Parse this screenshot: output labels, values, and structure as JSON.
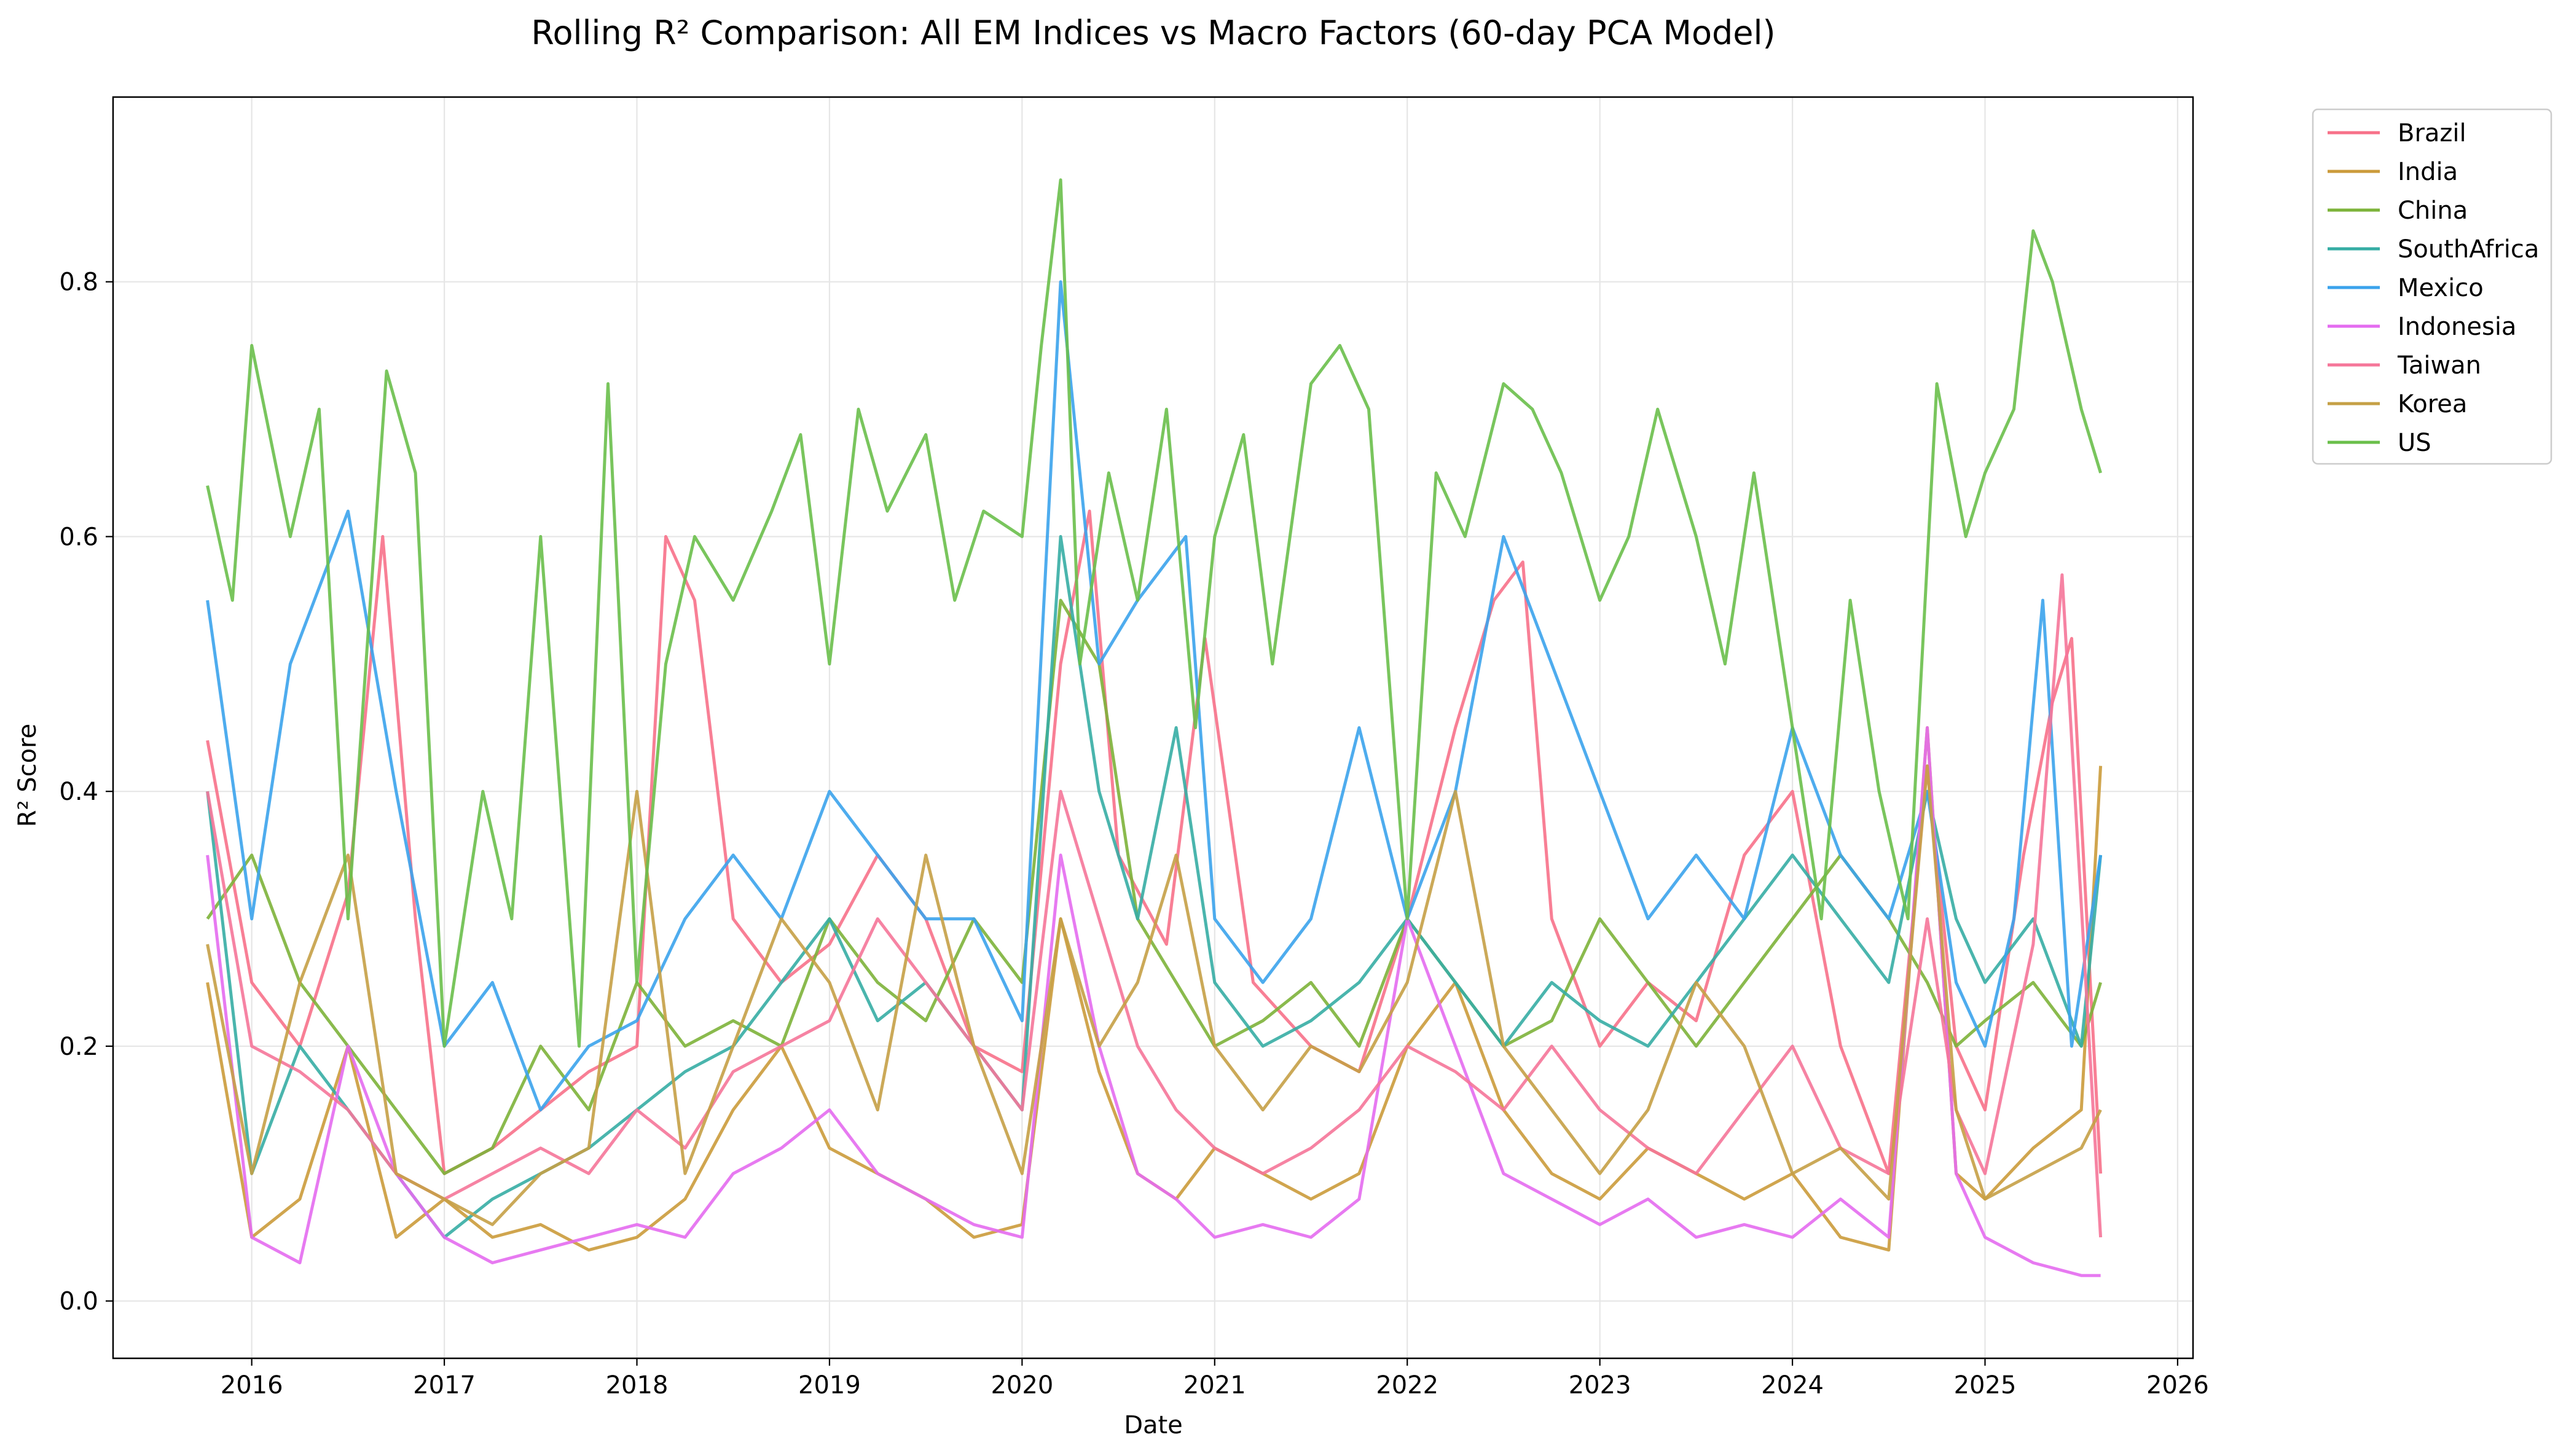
{
  "chart_data": {
    "type": "line",
    "title": "Rolling R² Comparison: All EM Indices vs Macro Factors (60-day PCA Model)",
    "xlabel": "Date",
    "ylabel": "R² Score",
    "xlim": [
      2015.28,
      2026.08
    ],
    "ylim": [
      -0.045,
      0.945
    ],
    "x_ticks": [
      2016,
      2017,
      2018,
      2019,
      2020,
      2021,
      2022,
      2023,
      2024,
      2025,
      2026
    ],
    "x_tick_labels": [
      "2016",
      "2017",
      "2018",
      "2019",
      "2020",
      "2021",
      "2022",
      "2023",
      "2024",
      "2025",
      "2026"
    ],
    "y_ticks": [
      0.0,
      0.2,
      0.4,
      0.6,
      0.8
    ],
    "y_tick_labels": [
      "0.0",
      "0.2",
      "0.4",
      "0.6",
      "0.8"
    ],
    "grid": true,
    "legend_position": "outside-upper-right",
    "series": [
      {
        "name": "Brazil",
        "color": "#f77189",
        "x": [
          2015.77,
          2016.0,
          2016.25,
          2016.5,
          2016.68,
          2016.85,
          2017.0,
          2017.25,
          2017.5,
          2017.75,
          2018.0,
          2018.15,
          2018.3,
          2018.5,
          2018.75,
          2019.0,
          2019.25,
          2019.5,
          2019.75,
          2020.0,
          2020.2,
          2020.35,
          2020.5,
          2020.75,
          2020.95,
          2021.2,
          2021.5,
          2021.75,
          2022.0,
          2022.25,
          2022.45,
          2022.6,
          2022.75,
          2023.0,
          2023.25,
          2023.5,
          2023.75,
          2024.0,
          2024.25,
          2024.5,
          2024.7,
          2024.85,
          2025.0,
          2025.2,
          2025.35,
          2025.45,
          2025.6
        ],
        "y": [
          0.44,
          0.25,
          0.2,
          0.32,
          0.6,
          0.3,
          0.1,
          0.12,
          0.15,
          0.18,
          0.2,
          0.6,
          0.55,
          0.3,
          0.25,
          0.28,
          0.35,
          0.3,
          0.2,
          0.18,
          0.5,
          0.62,
          0.35,
          0.28,
          0.52,
          0.25,
          0.2,
          0.18,
          0.3,
          0.45,
          0.55,
          0.58,
          0.3,
          0.2,
          0.25,
          0.22,
          0.35,
          0.4,
          0.2,
          0.1,
          0.42,
          0.2,
          0.15,
          0.35,
          0.47,
          0.52,
          0.1
        ]
      },
      {
        "name": "India",
        "color": "#cb9b3b",
        "x": [
          2015.77,
          2016.0,
          2016.25,
          2016.5,
          2016.75,
          2017.0,
          2017.25,
          2017.5,
          2017.75,
          2018.0,
          2018.25,
          2018.5,
          2018.75,
          2019.0,
          2019.25,
          2019.5,
          2019.75,
          2020.0,
          2020.2,
          2020.4,
          2020.6,
          2020.8,
          2021.0,
          2021.25,
          2021.5,
          2021.75,
          2022.0,
          2022.25,
          2022.5,
          2022.75,
          2023.0,
          2023.25,
          2023.5,
          2023.75,
          2024.0,
          2024.25,
          2024.5,
          2024.7,
          2024.85,
          2025.0,
          2025.25,
          2025.5,
          2025.6
        ],
        "y": [
          0.25,
          0.05,
          0.08,
          0.2,
          0.05,
          0.08,
          0.05,
          0.06,
          0.04,
          0.05,
          0.08,
          0.15,
          0.2,
          0.12,
          0.1,
          0.08,
          0.05,
          0.06,
          0.3,
          0.18,
          0.1,
          0.08,
          0.12,
          0.1,
          0.08,
          0.1,
          0.2,
          0.25,
          0.15,
          0.1,
          0.08,
          0.12,
          0.1,
          0.08,
          0.1,
          0.05,
          0.04,
          0.45,
          0.1,
          0.08,
          0.12,
          0.15,
          0.42
        ]
      },
      {
        "name": "China",
        "color": "#7db33a",
        "x": [
          2015.77,
          2016.0,
          2016.25,
          2016.5,
          2016.75,
          2017.0,
          2017.25,
          2017.5,
          2017.75,
          2018.0,
          2018.25,
          2018.5,
          2018.75,
          2019.0,
          2019.25,
          2019.5,
          2019.75,
          2020.0,
          2020.2,
          2020.4,
          2020.6,
          2020.8,
          2021.0,
          2021.25,
          2021.5,
          2021.75,
          2022.0,
          2022.25,
          2022.5,
          2022.75,
          2023.0,
          2023.25,
          2023.5,
          2023.75,
          2024.0,
          2024.25,
          2024.5,
          2024.7,
          2024.85,
          2025.0,
          2025.25,
          2025.5,
          2025.6
        ],
        "y": [
          0.3,
          0.35,
          0.25,
          0.2,
          0.15,
          0.1,
          0.12,
          0.2,
          0.15,
          0.25,
          0.2,
          0.22,
          0.2,
          0.3,
          0.25,
          0.22,
          0.3,
          0.25,
          0.55,
          0.5,
          0.3,
          0.25,
          0.2,
          0.22,
          0.25,
          0.2,
          0.3,
          0.25,
          0.2,
          0.22,
          0.3,
          0.25,
          0.2,
          0.25,
          0.3,
          0.35,
          0.3,
          0.25,
          0.2,
          0.22,
          0.25,
          0.2,
          0.25
        ]
      },
      {
        "name": "SouthAfrica",
        "color": "#36ada4",
        "x": [
          2015.77,
          2016.0,
          2016.25,
          2016.5,
          2016.75,
          2017.0,
          2017.25,
          2017.5,
          2017.75,
          2018.0,
          2018.25,
          2018.5,
          2018.75,
          2019.0,
          2019.25,
          2019.5,
          2019.75,
          2020.0,
          2020.2,
          2020.4,
          2020.6,
          2020.8,
          2021.0,
          2021.25,
          2021.5,
          2021.75,
          2022.0,
          2022.25,
          2022.5,
          2022.75,
          2023.0,
          2023.25,
          2023.5,
          2023.75,
          2024.0,
          2024.25,
          2024.5,
          2024.7,
          2024.85,
          2025.0,
          2025.25,
          2025.5,
          2025.6
        ],
        "y": [
          0.4,
          0.1,
          0.2,
          0.15,
          0.1,
          0.05,
          0.08,
          0.1,
          0.12,
          0.15,
          0.18,
          0.2,
          0.25,
          0.3,
          0.22,
          0.25,
          0.2,
          0.15,
          0.6,
          0.4,
          0.3,
          0.45,
          0.25,
          0.2,
          0.22,
          0.25,
          0.3,
          0.25,
          0.2,
          0.25,
          0.22,
          0.2,
          0.25,
          0.3,
          0.35,
          0.3,
          0.25,
          0.4,
          0.3,
          0.25,
          0.3,
          0.2,
          0.35
        ]
      },
      {
        "name": "Mexico",
        "color": "#3ba3ec",
        "x": [
          2015.77,
          2016.0,
          2016.2,
          2016.5,
          2016.75,
          2017.0,
          2017.25,
          2017.5,
          2017.75,
          2018.0,
          2018.25,
          2018.5,
          2018.75,
          2019.0,
          2019.25,
          2019.5,
          2019.75,
          2020.0,
          2020.2,
          2020.4,
          2020.6,
          2020.85,
          2021.0,
          2021.25,
          2021.5,
          2021.75,
          2022.0,
          2022.25,
          2022.5,
          2022.75,
          2023.0,
          2023.25,
          2023.5,
          2023.75,
          2024.0,
          2024.25,
          2024.5,
          2024.7,
          2024.85,
          2025.0,
          2025.15,
          2025.3,
          2025.45,
          2025.6
        ],
        "y": [
          0.55,
          0.3,
          0.5,
          0.62,
          0.4,
          0.2,
          0.25,
          0.15,
          0.2,
          0.22,
          0.3,
          0.35,
          0.3,
          0.4,
          0.35,
          0.3,
          0.3,
          0.22,
          0.8,
          0.5,
          0.55,
          0.6,
          0.3,
          0.25,
          0.3,
          0.45,
          0.3,
          0.4,
          0.6,
          0.5,
          0.4,
          0.3,
          0.35,
          0.3,
          0.45,
          0.35,
          0.3,
          0.4,
          0.25,
          0.2,
          0.3,
          0.55,
          0.2,
          0.35
        ]
      },
      {
        "name": "Indonesia",
        "color": "#e46cf0",
        "x": [
          2015.77,
          2016.0,
          2016.25,
          2016.5,
          2016.75,
          2017.0,
          2017.25,
          2017.5,
          2017.75,
          2018.0,
          2018.25,
          2018.5,
          2018.75,
          2019.0,
          2019.25,
          2019.5,
          2019.75,
          2020.0,
          2020.2,
          2020.4,
          2020.6,
          2020.8,
          2021.0,
          2021.25,
          2021.5,
          2021.75,
          2022.0,
          2022.25,
          2022.5,
          2022.75,
          2023.0,
          2023.25,
          2023.5,
          2023.75,
          2024.0,
          2024.25,
          2024.5,
          2024.7,
          2024.85,
          2025.0,
          2025.25,
          2025.5,
          2025.6
        ],
        "y": [
          0.35,
          0.05,
          0.03,
          0.2,
          0.1,
          0.05,
          0.03,
          0.04,
          0.05,
          0.06,
          0.05,
          0.1,
          0.12,
          0.15,
          0.1,
          0.08,
          0.06,
          0.05,
          0.35,
          0.2,
          0.1,
          0.08,
          0.05,
          0.06,
          0.05,
          0.08,
          0.3,
          0.2,
          0.1,
          0.08,
          0.06,
          0.08,
          0.05,
          0.06,
          0.05,
          0.08,
          0.05,
          0.45,
          0.1,
          0.05,
          0.03,
          0.02,
          0.02
        ]
      },
      {
        "name": "Taiwan",
        "color": "#f57699",
        "x": [
          2015.77,
          2016.0,
          2016.25,
          2016.5,
          2016.75,
          2017.0,
          2017.25,
          2017.5,
          2017.75,
          2018.0,
          2018.25,
          2018.5,
          2018.75,
          2019.0,
          2019.25,
          2019.5,
          2019.75,
          2020.0,
          2020.2,
          2020.4,
          2020.6,
          2020.8,
          2021.0,
          2021.25,
          2021.5,
          2021.75,
          2022.0,
          2022.25,
          2022.5,
          2022.75,
          2023.0,
          2023.25,
          2023.5,
          2023.75,
          2024.0,
          2024.25,
          2024.5,
          2024.7,
          2024.85,
          2025.0,
          2025.25,
          2025.4,
          2025.6
        ],
        "y": [
          0.4,
          0.2,
          0.18,
          0.15,
          0.1,
          0.08,
          0.1,
          0.12,
          0.1,
          0.15,
          0.12,
          0.18,
          0.2,
          0.22,
          0.3,
          0.25,
          0.2,
          0.15,
          0.4,
          0.3,
          0.2,
          0.15,
          0.12,
          0.1,
          0.12,
          0.15,
          0.2,
          0.18,
          0.15,
          0.2,
          0.15,
          0.12,
          0.1,
          0.15,
          0.2,
          0.12,
          0.1,
          0.3,
          0.15,
          0.1,
          0.28,
          0.57,
          0.05
        ]
      },
      {
        "name": "Korea",
        "color": "#c5a046",
        "x": [
          2015.77,
          2016.0,
          2016.25,
          2016.5,
          2016.75,
          2017.0,
          2017.25,
          2017.5,
          2017.75,
          2018.0,
          2018.25,
          2018.5,
          2018.75,
          2019.0,
          2019.25,
          2019.5,
          2019.75,
          2020.0,
          2020.2,
          2020.4,
          2020.6,
          2020.8,
          2021.0,
          2021.25,
          2021.5,
          2021.75,
          2022.0,
          2022.25,
          2022.5,
          2022.75,
          2023.0,
          2023.25,
          2023.5,
          2023.75,
          2024.0,
          2024.25,
          2024.5,
          2024.7,
          2024.85,
          2025.0,
          2025.25,
          2025.5,
          2025.6
        ],
        "y": [
          0.28,
          0.1,
          0.25,
          0.35,
          0.1,
          0.08,
          0.06,
          0.1,
          0.12,
          0.4,
          0.1,
          0.2,
          0.3,
          0.25,
          0.15,
          0.35,
          0.2,
          0.1,
          0.3,
          0.2,
          0.25,
          0.35,
          0.2,
          0.15,
          0.2,
          0.18,
          0.25,
          0.4,
          0.2,
          0.15,
          0.1,
          0.15,
          0.25,
          0.2,
          0.1,
          0.12,
          0.08,
          0.42,
          0.15,
          0.08,
          0.1,
          0.12,
          0.15
        ]
      },
      {
        "name": "US",
        "color": "#6abf4b",
        "x": [
          2015.77,
          2015.9,
          2016.0,
          2016.2,
          2016.35,
          2016.5,
          2016.7,
          2016.85,
          2017.0,
          2017.2,
          2017.35,
          2017.5,
          2017.7,
          2017.85,
          2018.0,
          2018.15,
          2018.3,
          2018.5,
          2018.7,
          2018.85,
          2019.0,
          2019.15,
          2019.3,
          2019.5,
          2019.65,
          2019.8,
          2020.0,
          2020.1,
          2020.2,
          2020.3,
          2020.45,
          2020.6,
          2020.75,
          2020.9,
          2021.0,
          2021.15,
          2021.3,
          2021.5,
          2021.65,
          2021.8,
          2022.0,
          2022.15,
          2022.3,
          2022.5,
          2022.65,
          2022.8,
          2023.0,
          2023.15,
          2023.3,
          2023.5,
          2023.65,
          2023.8,
          2024.0,
          2024.15,
          2024.3,
          2024.45,
          2024.6,
          2024.75,
          2024.9,
          2025.0,
          2025.15,
          2025.25,
          2025.35,
          2025.5,
          2025.6
        ],
        "y": [
          0.64,
          0.55,
          0.75,
          0.6,
          0.7,
          0.3,
          0.73,
          0.65,
          0.2,
          0.4,
          0.3,
          0.6,
          0.2,
          0.72,
          0.25,
          0.5,
          0.6,
          0.55,
          0.62,
          0.68,
          0.5,
          0.7,
          0.62,
          0.68,
          0.55,
          0.62,
          0.6,
          0.75,
          0.88,
          0.5,
          0.65,
          0.55,
          0.7,
          0.45,
          0.6,
          0.68,
          0.5,
          0.72,
          0.75,
          0.7,
          0.3,
          0.65,
          0.6,
          0.72,
          0.7,
          0.65,
          0.55,
          0.6,
          0.7,
          0.6,
          0.5,
          0.65,
          0.45,
          0.3,
          0.55,
          0.4,
          0.3,
          0.72,
          0.6,
          0.65,
          0.7,
          0.84,
          0.8,
          0.7,
          0.65
        ]
      }
    ]
  }
}
